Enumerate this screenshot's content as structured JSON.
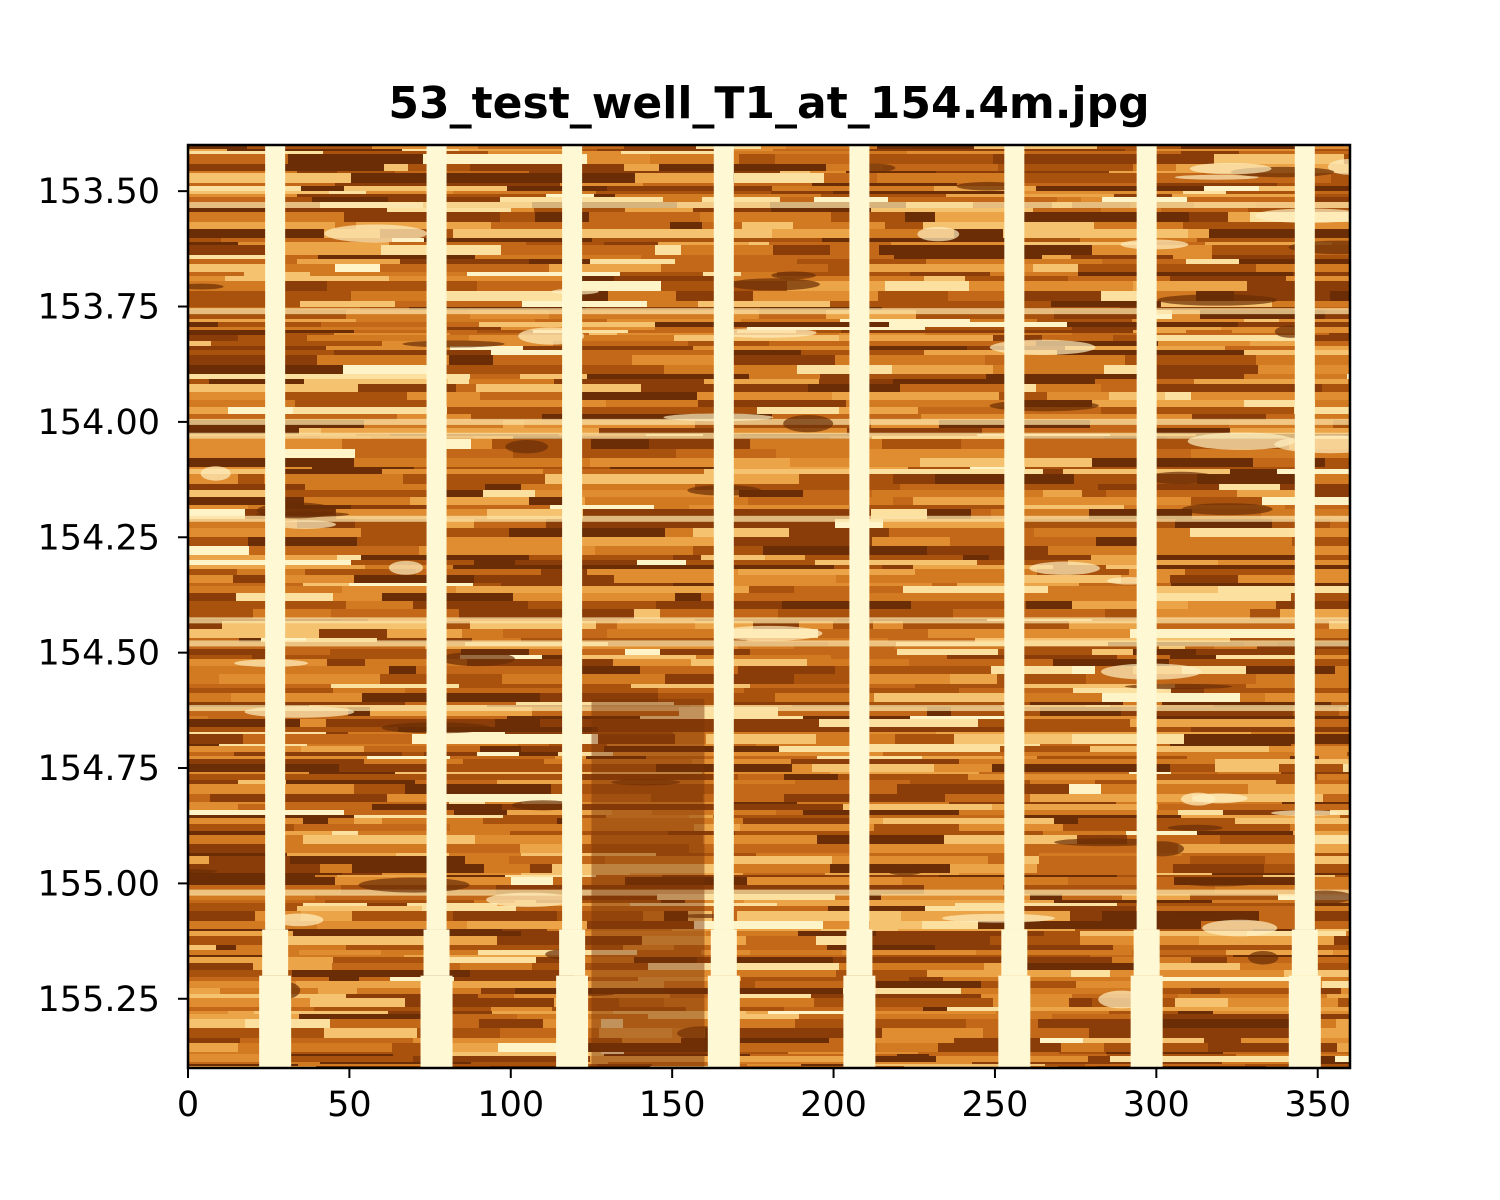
{
  "chart_data": {
    "type": "heatmap",
    "title": "53_test_well_T1_at_154.4m.jpg",
    "xlabel": "",
    "ylabel": "",
    "xlim": [
      0,
      360
    ],
    "ylim": [
      153.4,
      155.4
    ],
    "y_inverted": true,
    "colormap": "YlOrBr-like (dark brown to pale yellow)",
    "colors": {
      "high": "#fff8d4",
      "mid": "#e48a28",
      "low": "#6a2d05"
    },
    "x_ticks": [
      0,
      50,
      100,
      150,
      200,
      250,
      300,
      350
    ],
    "x_tick_labels": [
      "0",
      "50",
      "100",
      "150",
      "200",
      "250",
      "300",
      "350"
    ],
    "y_ticks": [
      153.5,
      153.75,
      154.0,
      154.25,
      154.5,
      154.75,
      155.0,
      155.25
    ],
    "y_tick_labels": [
      "153.50",
      "153.75",
      "154.00",
      "154.25",
      "154.50",
      "154.75",
      "155.00",
      "155.25"
    ],
    "pad_stripes_x": [
      27,
      77,
      119,
      166,
      208,
      256,
      297,
      346
    ],
    "grid": false
  }
}
